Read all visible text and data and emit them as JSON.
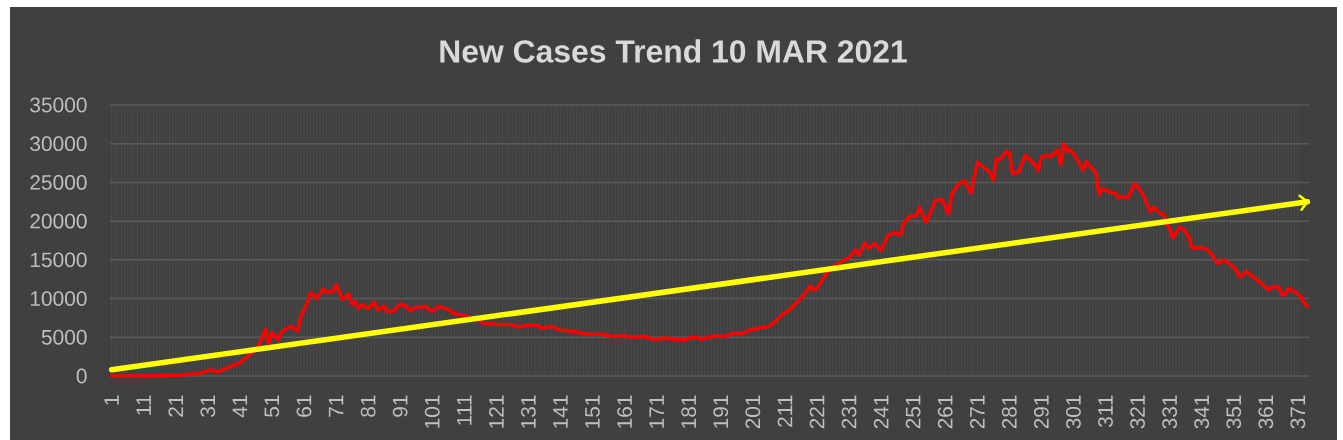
{
  "chart_data": {
    "type": "line",
    "title": "New Cases Trend 10 MAR 2021",
    "xlim": [
      0.5,
      374.5
    ],
    "xticks": [
      1,
      11,
      21,
      31,
      41,
      51,
      61,
      71,
      81,
      91,
      101,
      111,
      121,
      131,
      141,
      151,
      161,
      171,
      181,
      191,
      201,
      211,
      221,
      231,
      241,
      251,
      261,
      271,
      281,
      291,
      301,
      311,
      321,
      331,
      341,
      351,
      361,
      371
    ],
    "ylim": [
      0,
      35000
    ],
    "yticks": [
      0,
      5000,
      10000,
      15000,
      20000,
      25000,
      30000,
      35000
    ],
    "grid": true,
    "series": [
      {
        "color": "#ff0000",
        "x": [
          1,
          12,
          22,
          27,
          29,
          32,
          34,
          38,
          41,
          44,
          47,
          49,
          50,
          51,
          53,
          54,
          56,
          57,
          59,
          60,
          62,
          63,
          64,
          65,
          67,
          68,
          70,
          71,
          72,
          73,
          75,
          76,
          77,
          78,
          79,
          81,
          83,
          84,
          86,
          87,
          89,
          91,
          93,
          94,
          96,
          98,
          99,
          101,
          103,
          105,
          106,
          108,
          110,
          112,
          115,
          117,
          120,
          122,
          123,
          126,
          128,
          131,
          134,
          135,
          137,
          138,
          141,
          145,
          149,
          154,
          157,
          161,
          163,
          167,
          170,
          174,
          177,
          180,
          182,
          184,
          185,
          187,
          190,
          192,
          195,
          198,
          200,
          203,
          206,
          208,
          210,
          212,
          214,
          217,
          219,
          220,
          221,
          223,
          225,
          227,
          228,
          230,
          231,
          233,
          234,
          236,
          237,
          239,
          241,
          243,
          245,
          247,
          248,
          250,
          252,
          253,
          255,
          257,
          258,
          260,
          262,
          263,
          265,
          267,
          269,
          271,
          273,
          275,
          276,
          277,
          278,
          280,
          281,
          282,
          284,
          286,
          287,
          289,
          290,
          291,
          293,
          294,
          296,
          297,
          298,
          299,
          300,
          302,
          304,
          305,
          308,
          309,
          310,
          312,
          314,
          315,
          316,
          318,
          320,
          321,
          323,
          325,
          326,
          328,
          329,
          331,
          332,
          334,
          335,
          337,
          338,
          340,
          342,
          344,
          346,
          348,
          351,
          353,
          355,
          357,
          358,
          360,
          362,
          363,
          365,
          366,
          367,
          368,
          370,
          372,
          373,
          374
        ],
        "values": [
          0,
          0,
          100,
          300,
          400,
          800,
          500,
          1200,
          1700,
          2700,
          4000,
          6000,
          4200,
          5600,
          4700,
          5700,
          6200,
          6400,
          5800,
          7700,
          9400,
          10700,
          10500,
          10000,
          11200,
          10800,
          10900,
          11800,
          10900,
          9900,
          10600,
          9200,
          9600,
          8700,
          9200,
          8700,
          9500,
          8500,
          9000,
          8300,
          8400,
          9300,
          9000,
          8400,
          8900,
          8900,
          9000,
          8300,
          9000,
          8700,
          8600,
          8000,
          7900,
          7700,
          7300,
          6800,
          6700,
          6600,
          6700,
          6600,
          6300,
          6600,
          6500,
          6200,
          6300,
          6400,
          5900,
          5800,
          5400,
          5400,
          5100,
          5200,
          5000,
          5100,
          4700,
          4900,
          4700,
          4700,
          5000,
          4900,
          4700,
          5000,
          5200,
          5100,
          5500,
          5500,
          5900,
          6200,
          6400,
          7000,
          7900,
          8400,
          9200,
          10500,
          11600,
          11100,
          11300,
          12600,
          13900,
          14300,
          14600,
          15100,
          15200,
          16300,
          15600,
          17200,
          16500,
          17100,
          16200,
          18100,
          18500,
          18200,
          19700,
          20600,
          20700,
          21800,
          19800,
          21700,
          22700,
          22800,
          20900,
          23400,
          24700,
          25200,
          23600,
          27600,
          26900,
          26300,
          25300,
          28100,
          27900,
          29000,
          28800,
          26100,
          26400,
          28500,
          28100,
          27300,
          26500,
          28300,
          28500,
          28300,
          29200,
          27300,
          30000,
          29000,
          29200,
          28100,
          26600,
          27700,
          26200,
          23400,
          24200,
          23800,
          23600,
          23000,
          23200,
          23000,
          24800,
          24500,
          23200,
          21200,
          21800,
          21000,
          20900,
          18900,
          17800,
          19200,
          19100,
          18000,
          16500,
          16600,
          16500,
          15800,
          14500,
          15000,
          14100,
          12800,
          13500,
          12800,
          12500,
          11800,
          11100,
          11500,
          11500,
          10500,
          10500,
          11300,
          10900,
          10200,
          9400,
          9000
        ]
      },
      {
        "color": "#ffff00",
        "x": [
          1,
          374
        ],
        "values": [
          800,
          22500
        ]
      }
    ]
  }
}
